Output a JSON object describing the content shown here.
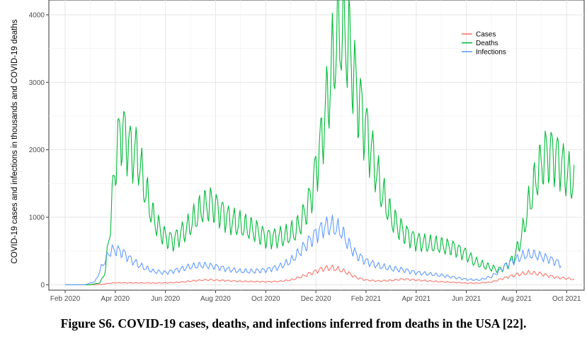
{
  "chart_data": {
    "type": "line",
    "title": "",
    "xlabel": "",
    "ylabel": "COVID-19 cases and infections in thousands and COVID-19 deaths",
    "ylim": [
      -80,
      4220
    ],
    "yticks": [
      0,
      1000,
      2000,
      3000,
      4000
    ],
    "x_unit": "months since Jan 1 2020",
    "xlim": [
      0.35,
      21.7
    ],
    "xticks": [
      {
        "label": "Feb 2020",
        "x": 1
      },
      {
        "label": "Apr 2020",
        "x": 3
      },
      {
        "label": "Jun 2020",
        "x": 5
      },
      {
        "label": "Aug 2020",
        "x": 7
      },
      {
        "label": "Oct 2020",
        "x": 9
      },
      {
        "label": "Dec 2020",
        "x": 11
      },
      {
        "label": "Feb 2021",
        "x": 13
      },
      {
        "label": "Apr 2021",
        "x": 15
      },
      {
        "label": "Jun 2021",
        "x": 17
      },
      {
        "label": "Aug 2021",
        "x": 19
      },
      {
        "label": "Oct 2021",
        "x": 21
      }
    ],
    "grid": true,
    "legend_position": "top-right",
    "series": [
      {
        "name": "Cases",
        "color": "#F8766D",
        "x": [
          1.0,
          2.0,
          2.5,
          2.7,
          3.0,
          3.5,
          4.0,
          4.5,
          5.0,
          5.5,
          6.0,
          6.5,
          6.8,
          7.0,
          7.5,
          8.0,
          8.5,
          9.0,
          9.5,
          10.0,
          10.5,
          11.0,
          11.3,
          11.6,
          12.0,
          12.3,
          12.6,
          13.0,
          13.5,
          14.0,
          14.5,
          15.0,
          15.5,
          16.0,
          16.5,
          17.0,
          17.5,
          18.0,
          18.5,
          19.0,
          19.5,
          20.0,
          20.3,
          20.6,
          21.0,
          21.3
        ],
        "values": [
          0,
          0,
          5,
          20,
          30,
          28,
          28,
          25,
          28,
          35,
          55,
          70,
          75,
          68,
          60,
          50,
          48,
          45,
          50,
          70,
          130,
          200,
          240,
          250,
          220,
          170,
          110,
          70,
          55,
          65,
          85,
          70,
          55,
          45,
          35,
          25,
          25,
          40,
          100,
          150,
          180,
          160,
          130,
          110,
          95,
          80
        ]
      },
      {
        "name": "Deaths",
        "color": "#00BA38",
        "x": [
          1.0,
          2.0,
          2.4,
          2.6,
          2.8,
          3.0,
          3.2,
          3.4,
          3.6,
          3.9,
          4.2,
          4.5,
          4.8,
          5.0,
          5.3,
          5.6,
          5.9,
          6.2,
          6.5,
          6.8,
          7.0,
          7.3,
          7.6,
          7.9,
          8.2,
          8.6,
          9.0,
          9.4,
          9.8,
          10.2,
          10.5,
          10.8,
          11.0,
          11.2,
          11.4,
          11.6,
          11.8,
          12.0,
          12.2,
          12.4,
          12.6,
          12.8,
          13.0,
          13.2,
          13.4,
          13.6,
          13.8,
          14.0,
          14.3,
          14.6,
          15.0,
          15.5,
          16.0,
          16.5,
          17.0,
          17.3,
          17.6,
          18.0,
          18.3,
          18.6,
          18.9,
          19.2,
          19.5,
          19.8,
          20.1,
          20.4,
          20.7,
          21.0,
          21.2,
          21.3
        ],
        "values": [
          0,
          0,
          30,
          200,
          900,
          1800,
          2300,
          2200,
          2000,
          1900,
          1400,
          1000,
          800,
          700,
          650,
          750,
          850,
          1000,
          1150,
          1200,
          1150,
          1050,
          950,
          900,
          850,
          800,
          700,
          700,
          720,
          800,
          1000,
          1300,
          1700,
          2100,
          2600,
          3100,
          3600,
          3800,
          3700,
          3400,
          2900,
          2600,
          2300,
          2000,
          1700,
          1400,
          1200,
          1000,
          850,
          750,
          650,
          600,
          580,
          550,
          450,
          350,
          300,
          250,
          220,
          280,
          400,
          700,
          1200,
          1600,
          1900,
          1950,
          1850,
          1650,
          1550,
          1550
        ]
      },
      {
        "name": "Infections",
        "color": "#619CFF",
        "x": [
          1.0,
          1.8,
          2.2,
          2.5,
          2.8,
          3.0,
          3.3,
          3.6,
          4.0,
          4.5,
          5.0,
          5.5,
          6.0,
          6.5,
          7.0,
          7.5,
          8.0,
          8.5,
          9.0,
          9.5,
          10.0,
          10.5,
          11.0,
          11.3,
          11.6,
          12.0,
          12.3,
          12.6,
          13.0,
          13.5,
          14.0,
          14.5,
          15.0,
          15.5,
          16.0,
          16.5,
          17.0,
          17.5,
          18.0,
          18.3,
          18.6,
          19.0,
          19.3,
          19.6,
          20.0,
          20.3,
          20.6,
          20.8
        ],
        "values": [
          0,
          0,
          50,
          300,
          500,
          520,
          480,
          380,
          280,
          200,
          180,
          220,
          270,
          290,
          270,
          230,
          200,
          200,
          220,
          260,
          350,
          550,
          750,
          850,
          880,
          800,
          600,
          450,
          350,
          280,
          240,
          220,
          180,
          160,
          140,
          110,
          80,
          70,
          120,
          200,
          300,
          380,
          440,
          450,
          420,
          380,
          340,
          300
        ]
      }
    ]
  },
  "caption": "Figure S6. COVID-19 cases, deaths, and infections inferred from deaths in the USA [22]."
}
